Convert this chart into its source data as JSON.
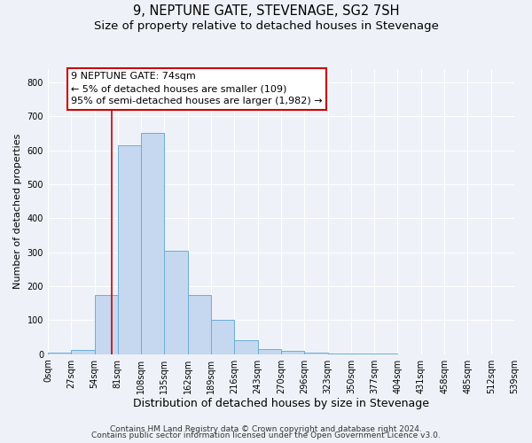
{
  "title": "9, NEPTUNE GATE, STEVENAGE, SG2 7SH",
  "subtitle": "Size of property relative to detached houses in Stevenage",
  "xlabel": "Distribution of detached houses by size in Stevenage",
  "ylabel": "Number of detached properties",
  "bin_edges": [
    0,
    27,
    54,
    81,
    108,
    135,
    162,
    189,
    216,
    243,
    270,
    297,
    324,
    351,
    378,
    405,
    432,
    459,
    486,
    513,
    540
  ],
  "bin_labels": [
    "0sqm",
    "27sqm",
    "54sqm",
    "81sqm",
    "108sqm",
    "135sqm",
    "162sqm",
    "189sqm",
    "216sqm",
    "243sqm",
    "270sqm",
    "296sqm",
    "323sqm",
    "350sqm",
    "377sqm",
    "404sqm",
    "431sqm",
    "458sqm",
    "485sqm",
    "512sqm",
    "539sqm"
  ],
  "bar_heights": [
    5,
    12,
    175,
    615,
    650,
    305,
    175,
    100,
    42,
    15,
    10,
    5,
    3,
    2,
    2,
    0,
    0,
    0,
    0,
    0
  ],
  "bar_color": "#c5d8f0",
  "bar_edgecolor": "#6baed6",
  "bar_linewidth": 0.7,
  "vline_x": 74,
  "vline_color": "#cc0000",
  "ylim": [
    0,
    840
  ],
  "yticks": [
    0,
    100,
    200,
    300,
    400,
    500,
    600,
    700,
    800
  ],
  "annotation_line1": "9 NEPTUNE GATE: 74sqm",
  "annotation_line2": "← 5% of detached houses are smaller (109)",
  "annotation_line3": "95% of semi-detached houses are larger (1,982) →",
  "footer_text1": "Contains HM Land Registry data © Crown copyright and database right 2024.",
  "footer_text2": "Contains public sector information licensed under the Open Government Licence v3.0.",
  "background_color": "#eef2f8",
  "grid_color": "#ffffff",
  "title_fontsize": 10.5,
  "subtitle_fontsize": 9.5,
  "xlabel_fontsize": 9,
  "ylabel_fontsize": 8,
  "tick_fontsize": 7,
  "annot_fontsize": 8,
  "footer_fontsize": 6.5
}
